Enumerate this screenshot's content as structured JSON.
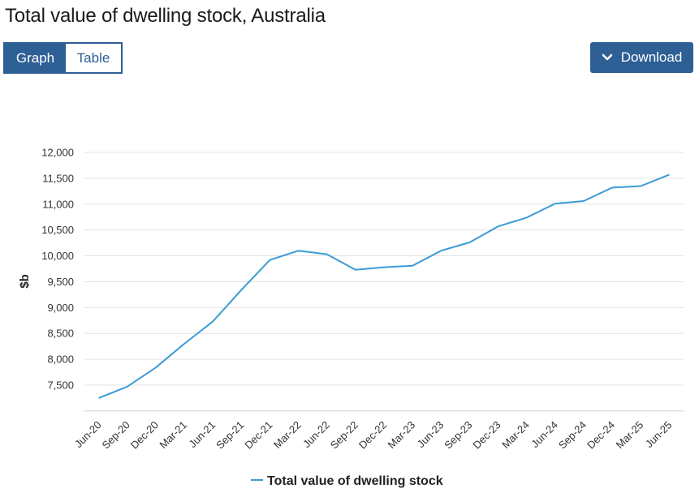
{
  "page": {
    "title": "Total value of dwelling stock, Australia"
  },
  "toolbar": {
    "graph_label": "Graph",
    "table_label": "Table",
    "download_label": "Download",
    "download_icon": "chevron-down-icon"
  },
  "colors": {
    "brand": "#2e5f95",
    "series": "#3a9bd5",
    "grid": "#e3e3e3"
  },
  "chart_data": {
    "type": "line",
    "ylabel": "$b",
    "xlabel": "",
    "ylim": [
      7000,
      12000
    ],
    "yticks": [
      7500,
      8000,
      8500,
      9000,
      9500,
      10000,
      10500,
      11000,
      11500,
      12000
    ],
    "ytick_labels": [
      "7,500",
      "8,000",
      "8,500",
      "9,000",
      "9,500",
      "10,000",
      "10,500",
      "11,000",
      "11,500",
      "12,000"
    ],
    "grid": true,
    "legend_position": "bottom",
    "categories": [
      "Jun-20",
      "Sep-20",
      "Dec-20",
      "Mar-21",
      "Jun-21",
      "Sep-21",
      "Dec-21",
      "Mar-22",
      "Jun-22",
      "Sep-22",
      "Dec-22",
      "Mar-23",
      "Jun-23",
      "Sep-23",
      "Dec-23",
      "Mar-24",
      "Jun-24",
      "Sep-24",
      "Dec-24",
      "Mar-25",
      "Jun-25"
    ],
    "series": [
      {
        "name": "Total value of dwelling stock",
        "values": [
          7250,
          7470,
          7840,
          8300,
          8730,
          9340,
          9920,
          10100,
          10030,
          9730,
          9780,
          9810,
          10100,
          10260,
          10570,
          10740,
          11010,
          11060,
          11320,
          11350,
          11570
        ]
      }
    ]
  }
}
